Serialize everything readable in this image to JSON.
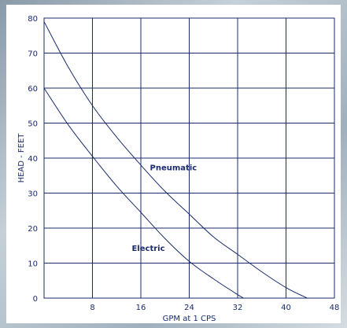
{
  "chart_data": {
    "type": "line",
    "title": "",
    "xlabel": "GPM at 1 CPS",
    "ylabel": "HEAD - FEET",
    "xlim": [
      0,
      48
    ],
    "ylim": [
      0,
      80
    ],
    "xticks": [
      8,
      16,
      24,
      32,
      40,
      48
    ],
    "yticks": [
      0,
      10,
      20,
      30,
      40,
      50,
      60,
      70,
      80
    ],
    "grid": true,
    "series": [
      {
        "name": "Pneumatic",
        "x": [
          0,
          4,
          8,
          12,
          16,
          20,
          24,
          28,
          32,
          36,
          40,
          43.5
        ],
        "y": [
          79,
          66,
          55,
          46,
          38,
          30.5,
          24,
          17.5,
          12.5,
          7.5,
          3,
          0
        ]
      },
      {
        "name": "Electric",
        "x": [
          0,
          4,
          8,
          12,
          16,
          20,
          24,
          28,
          32,
          33
        ],
        "y": [
          60,
          49.5,
          40.5,
          32,
          24.5,
          17,
          10.5,
          5.5,
          1,
          0
        ]
      }
    ]
  },
  "colors": {
    "line": "#1a2b6e",
    "grid": "#1a2b6e",
    "text": "#1a2b6e"
  }
}
